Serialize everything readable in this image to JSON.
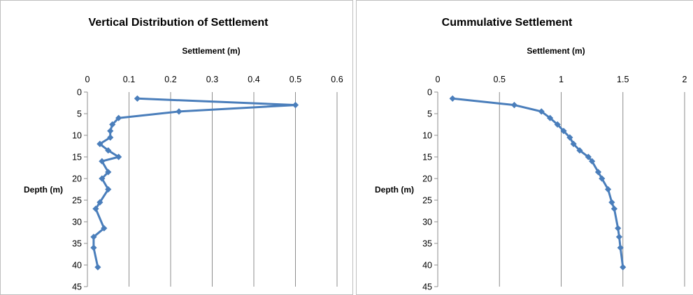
{
  "chart_data": [
    {
      "type": "line",
      "title": "Vertical Distribution of Settlement",
      "xlabel": "Settlement (m)",
      "ylabel": "Depth (m)",
      "x_axis_position": "top",
      "y_axis_inverted": true,
      "xlim": [
        0,
        0.6
      ],
      "ylim": [
        0,
        45
      ],
      "x_ticks": [
        "0",
        "0.1",
        "0.2",
        "0.3",
        "0.4",
        "0.5",
        "0.6"
      ],
      "y_ticks": [
        "0",
        "5",
        "10",
        "15",
        "20",
        "25",
        "30",
        "35",
        "40",
        "45"
      ],
      "grid": "vertical",
      "legend": "none",
      "series_color": "#4a7ebb",
      "marker": "diamond",
      "series": [
        {
          "points": [
            {
              "x": 0.12,
              "y": 1.5
            },
            {
              "x": 0.5,
              "y": 3.0
            },
            {
              "x": 0.22,
              "y": 4.5
            },
            {
              "x": 0.075,
              "y": 6.0
            },
            {
              "x": 0.06,
              "y": 7.5
            },
            {
              "x": 0.055,
              "y": 9.0
            },
            {
              "x": 0.055,
              "y": 10.5
            },
            {
              "x": 0.03,
              "y": 12.0
            },
            {
              "x": 0.05,
              "y": 13.5
            },
            {
              "x": 0.075,
              "y": 15.0
            },
            {
              "x": 0.035,
              "y": 16.0
            },
            {
              "x": 0.05,
              "y": 18.5
            },
            {
              "x": 0.035,
              "y": 20.0
            },
            {
              "x": 0.05,
              "y": 22.5
            },
            {
              "x": 0.03,
              "y": 25.5
            },
            {
              "x": 0.02,
              "y": 27.0
            },
            {
              "x": 0.04,
              "y": 31.5
            },
            {
              "x": 0.015,
              "y": 33.5
            },
            {
              "x": 0.015,
              "y": 36.0
            },
            {
              "x": 0.025,
              "y": 40.5
            }
          ]
        }
      ]
    },
    {
      "type": "line",
      "title": "Cummulative Settlement",
      "xlabel": "Settlement (m)",
      "ylabel": "Depth (m)",
      "x_axis_position": "top",
      "y_axis_inverted": true,
      "xlim": [
        0,
        2
      ],
      "ylim": [
        0,
        45
      ],
      "x_ticks": [
        "0",
        "0.5",
        "1",
        "1.5",
        "2"
      ],
      "y_ticks": [
        "0",
        "5",
        "10",
        "15",
        "20",
        "25",
        "30",
        "35",
        "40",
        "45"
      ],
      "grid": "vertical",
      "legend": "none",
      "series_color": "#4a7ebb",
      "marker": "diamond",
      "series": [
        {
          "points": [
            {
              "x": 0.12,
              "y": 1.5
            },
            {
              "x": 0.62,
              "y": 3.0
            },
            {
              "x": 0.84,
              "y": 4.5
            },
            {
              "x": 0.91,
              "y": 6.0
            },
            {
              "x": 0.97,
              "y": 7.5
            },
            {
              "x": 1.02,
              "y": 9.0
            },
            {
              "x": 1.07,
              "y": 10.5
            },
            {
              "x": 1.1,
              "y": 12.0
            },
            {
              "x": 1.15,
              "y": 13.5
            },
            {
              "x": 1.22,
              "y": 15.0
            },
            {
              "x": 1.25,
              "y": 16.0
            },
            {
              "x": 1.3,
              "y": 18.5
            },
            {
              "x": 1.33,
              "y": 20.0
            },
            {
              "x": 1.38,
              "y": 22.5
            },
            {
              "x": 1.41,
              "y": 25.5
            },
            {
              "x": 1.43,
              "y": 27.0
            },
            {
              "x": 1.46,
              "y": 31.5
            },
            {
              "x": 1.47,
              "y": 33.5
            },
            {
              "x": 1.48,
              "y": 36.0
            },
            {
              "x": 1.5,
              "y": 40.5
            }
          ]
        }
      ]
    }
  ]
}
